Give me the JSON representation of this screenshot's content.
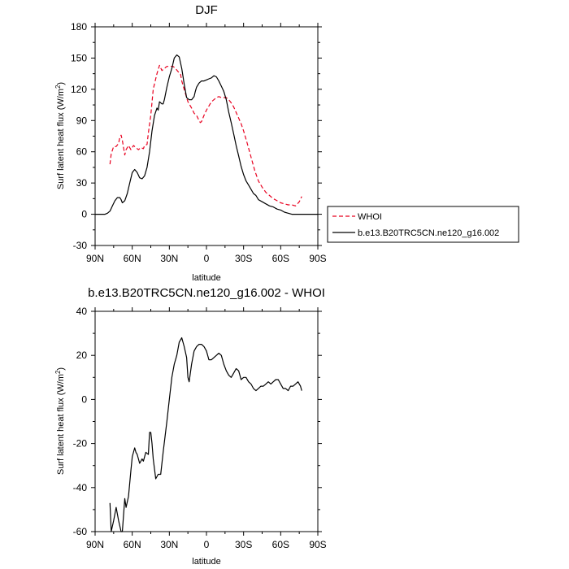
{
  "chart_data": [
    {
      "type": "line",
      "title": "DJF",
      "xlabel": "latitude",
      "ylabel": "Surf latent heat flux (W/m",
      "ylabel_sup": "2",
      "ylabel_end": ")",
      "xlim": [
        90,
        -90
      ],
      "ylim": [
        -30,
        180
      ],
      "x_ticks": [
        90,
        60,
        30,
        0,
        -30,
        -60,
        -90
      ],
      "x_tick_labels": [
        "90N",
        "60N",
        "30N",
        "0",
        "30S",
        "60S",
        "90S"
      ],
      "y_ticks": [
        -30,
        0,
        30,
        60,
        90,
        120,
        150,
        180
      ],
      "y_tick_labels": [
        "-30",
        "0",
        "30",
        "60",
        "90",
        "120",
        "150",
        "180"
      ],
      "legend": {
        "placement": "right",
        "entries": [
          "WHOI",
          "b.e13.B20TRC5CN.ne120_g16.002"
        ]
      },
      "series": [
        {
          "name": "WHOI",
          "color": "#e8001f",
          "dash": true,
          "x": [
            78,
            77,
            75,
            73,
            71,
            70,
            69,
            68,
            66,
            65,
            63,
            61,
            59,
            57,
            55,
            53,
            51,
            50,
            48,
            47,
            45,
            43,
            40,
            38,
            36,
            34,
            32,
            30,
            27,
            25,
            23,
            21,
            20,
            18,
            16,
            15,
            14,
            12,
            10,
            8,
            6,
            5,
            4,
            2,
            0,
            -2,
            -4,
            -6,
            -8,
            -10,
            -12,
            -14,
            -16,
            -18,
            -20,
            -22,
            -25,
            -28,
            -30,
            -33,
            -36,
            -39,
            -42,
            -45,
            -48,
            -51,
            -54,
            -57,
            -60,
            -63,
            -66,
            -69,
            -72,
            -75,
            -77
          ],
          "y": [
            48,
            58,
            65,
            65,
            68,
            74,
            76,
            71,
            57,
            62,
            66,
            62,
            66,
            64,
            62,
            64,
            63,
            66,
            67,
            78,
            95,
            120,
            135,
            143,
            138,
            140,
            142,
            142,
            142,
            140,
            137,
            135,
            128,
            120,
            112,
            108,
            106,
            102,
            97,
            95,
            90,
            88,
            89,
            95,
            100,
            104,
            108,
            110,
            112,
            113,
            112,
            112,
            112,
            110,
            107,
            103,
            95,
            87,
            80,
            68,
            55,
            42,
            32,
            26,
            21,
            18,
            15,
            13,
            11,
            10,
            9,
            9,
            8,
            12,
            17
          ]
        },
        {
          "name": "b.e13.B20TRC5CN.ne120_g16.002",
          "color": "#000000",
          "dash": false,
          "x": [
            90,
            85,
            82,
            80,
            78,
            76,
            74,
            72,
            70,
            69,
            68,
            66,
            64,
            62,
            60,
            58,
            56,
            54,
            52,
            50,
            48,
            46,
            44,
            42,
            40,
            39,
            38,
            36,
            35,
            34,
            32,
            30,
            28,
            26,
            24,
            22,
            20,
            18,
            16,
            14,
            12,
            10,
            9,
            8,
            6,
            4,
            2,
            0,
            -2,
            -4,
            -6,
            -8,
            -10,
            -12,
            -14,
            -16,
            -18,
            -20,
            -22,
            -24,
            -26,
            -28,
            -30,
            -32,
            -34,
            -36,
            -38,
            -40,
            -42,
            -45,
            -48,
            -51,
            -54,
            -57,
            -60,
            -63,
            -66,
            -69,
            -72,
            -75,
            -78,
            -80,
            -82,
            -85,
            -88,
            -90
          ],
          "y": [
            0,
            0,
            0,
            1,
            3,
            8,
            13,
            16,
            16,
            14,
            11,
            13,
            20,
            30,
            40,
            43,
            40,
            35,
            34,
            37,
            45,
            60,
            80,
            95,
            102,
            100,
            108,
            106,
            106,
            110,
            122,
            132,
            140,
            150,
            153,
            151,
            140,
            125,
            112,
            110,
            110,
            113,
            118,
            122,
            126,
            128,
            128,
            129,
            130,
            131,
            133,
            132,
            128,
            123,
            118,
            110,
            98,
            88,
            77,
            66,
            56,
            46,
            38,
            32,
            28,
            24,
            20,
            18,
            14,
            12,
            10,
            8,
            7,
            5,
            4,
            2,
            1,
            0,
            0,
            0,
            0,
            0,
            0,
            0,
            0,
            0
          ]
        }
      ]
    },
    {
      "type": "line",
      "title": "b.e13.B20TRC5CN.ne120_g16.002 - WHOI",
      "xlabel": "latitude",
      "ylabel": "Surf latent heat flux (W/m",
      "ylabel_sup": "2",
      "ylabel_end": ")",
      "xlim": [
        90,
        -90
      ],
      "ylim": [
        -60,
        40
      ],
      "x_ticks": [
        90,
        60,
        30,
        0,
        -30,
        -60,
        -90
      ],
      "x_tick_labels": [
        "90N",
        "60N",
        "30N",
        "0",
        "30S",
        "60S",
        "90S"
      ],
      "y_ticks": [
        -60,
        -40,
        -20,
        0,
        20,
        40
      ],
      "y_tick_labels": [
        "-60",
        "-40",
        "-20",
        "0",
        "20",
        "40"
      ],
      "series": [
        {
          "name": "b.e13.B20TRC5CN.ne120_g16.002 - WHOI",
          "color": "#000000",
          "dash": false,
          "x": [
            78,
            77,
            75,
            73,
            71,
            69,
            68,
            66,
            65,
            63,
            61,
            60,
            58,
            57,
            56,
            54,
            52,
            51,
            49,
            47,
            46,
            45,
            44,
            43,
            41,
            39,
            37,
            35,
            32,
            30,
            28,
            26,
            24,
            22,
            20,
            18,
            16,
            15,
            14,
            12,
            10,
            8,
            6,
            4,
            2,
            0,
            -2,
            -4,
            -6,
            -8,
            -10,
            -12,
            -14,
            -16,
            -18,
            -20,
            -22,
            -24,
            -26,
            -28,
            -30,
            -32,
            -34,
            -36,
            -38,
            -40,
            -42,
            -44,
            -46,
            -48,
            -50,
            -52,
            -54,
            -56,
            -58,
            -60,
            -62,
            -64,
            -66,
            -68,
            -70,
            -72,
            -74,
            -76,
            -77
          ],
          "y": [
            -47,
            -60,
            -55,
            -49,
            -55,
            -60,
            -60,
            -45,
            -49,
            -44,
            -32,
            -26,
            -22,
            -24,
            -25,
            -29,
            -27,
            -28,
            -24,
            -25,
            -15,
            -15,
            -20,
            -27,
            -36,
            -34,
            -34,
            -24,
            -10,
            0,
            10,
            16,
            20,
            26,
            28,
            24,
            19,
            10,
            8,
            16,
            22,
            24,
            25,
            25,
            24,
            22,
            18,
            18,
            19,
            20,
            21,
            20,
            16,
            13,
            11,
            10,
            12,
            14,
            13,
            9,
            10,
            10,
            8,
            7,
            5,
            4,
            5,
            6,
            6,
            7,
            8,
            7,
            8,
            9,
            9,
            7,
            5,
            5,
            4,
            6,
            6,
            7,
            8,
            6,
            4
          ]
        }
      ]
    }
  ]
}
